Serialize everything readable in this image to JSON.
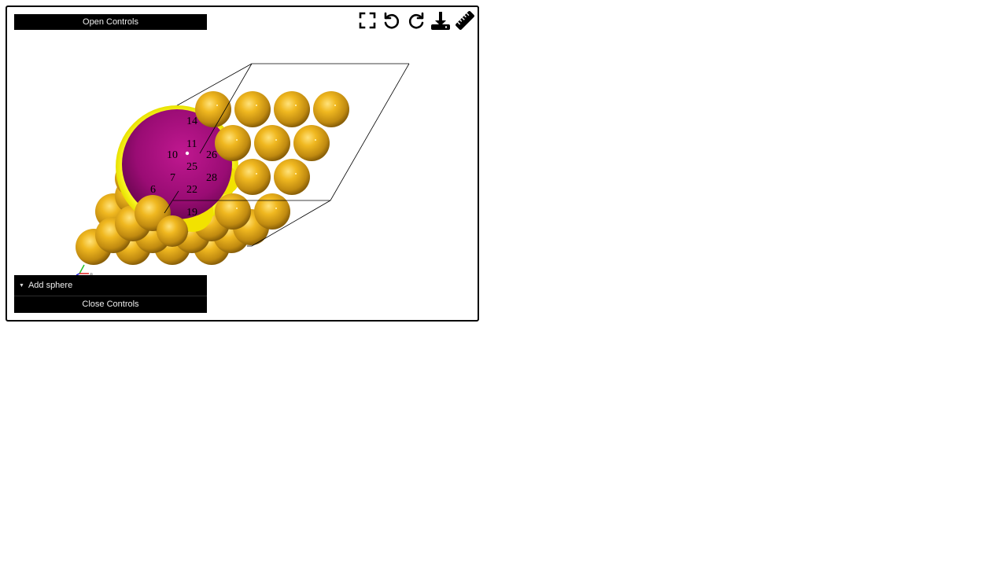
{
  "controls": {
    "open_label": "Open Controls",
    "folder_label": "Add sphere",
    "close_label": "Close Controls"
  },
  "toolbar": {
    "icons": [
      "fullscreen-icon",
      "undo-icon",
      "redo-icon",
      "download-icon",
      "ruler-icon"
    ]
  },
  "atom_labels": [
    {
      "id": "14",
      "text": "14"
    },
    {
      "id": "11",
      "text": "11"
    },
    {
      "id": "10",
      "text": "10"
    },
    {
      "id": "26",
      "text": "26"
    },
    {
      "id": "25",
      "text": "25"
    },
    {
      "id": "7",
      "text": "7"
    },
    {
      "id": "28",
      "text": "28"
    },
    {
      "id": "6",
      "text": "6"
    },
    {
      "id": "22",
      "text": "22"
    },
    {
      "id": "19",
      "text": "19"
    }
  ],
  "colors": {
    "gold_atom": "#e0a820",
    "magenta_sphere": "#a0107a",
    "highlight_yellow": "#ffff20",
    "cell_line": "#000000",
    "panel_bg": "#000000",
    "panel_text": "#eeeeee"
  }
}
